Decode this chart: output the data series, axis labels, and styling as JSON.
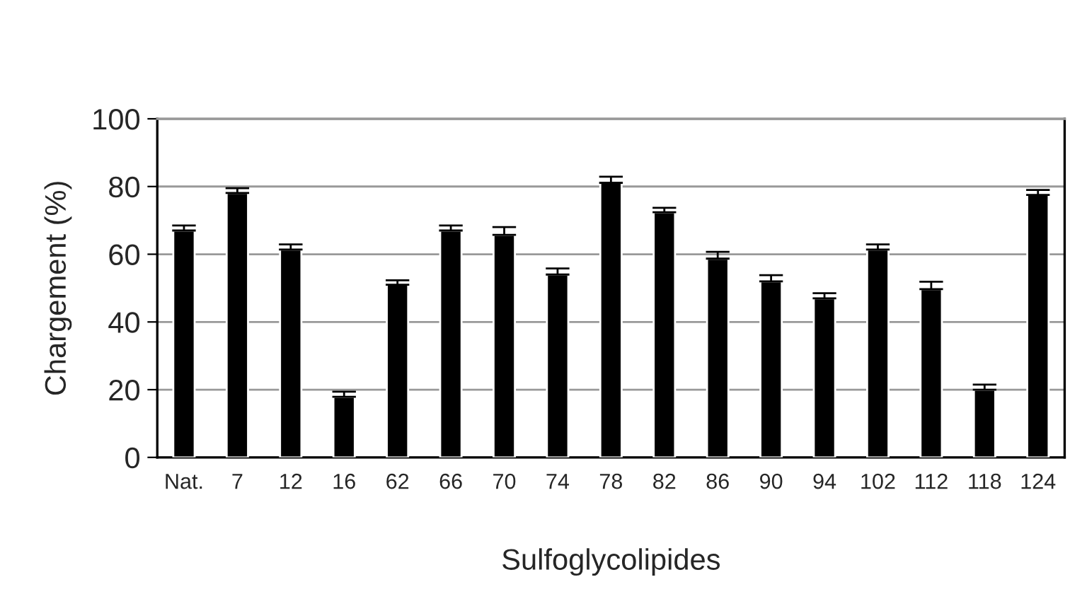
{
  "chart_data": {
    "type": "bar",
    "xlabel": "Sulfoglycolipides",
    "ylabel": "Chargement (%)",
    "categories": [
      "Nat.",
      "7",
      "12",
      "16",
      "62",
      "66",
      "70",
      "74",
      "78",
      "82",
      "86",
      "90",
      "94",
      "102",
      "112",
      "118",
      "124"
    ],
    "values": [
      67.0,
      78.1,
      61.4,
      17.9,
      51.0,
      67.0,
      65.7,
      54.0,
      81.1,
      72.4,
      58.7,
      52.0,
      47.0,
      61.4,
      49.7,
      20.0,
      77.5
    ],
    "errors": [
      [
        67.0,
        68.5
      ],
      [
        78.1,
        79.5
      ],
      [
        61.4,
        62.9
      ],
      [
        17.9,
        19.4
      ],
      [
        51.0,
        52.3
      ],
      [
        67.0,
        68.5
      ],
      [
        65.7,
        68.0
      ],
      [
        54.0,
        55.8
      ],
      [
        81.1,
        82.9
      ],
      [
        72.4,
        73.7
      ],
      [
        58.7,
        60.7
      ],
      [
        52.0,
        53.8
      ],
      [
        47.0,
        48.5
      ],
      [
        61.4,
        62.9
      ],
      [
        49.7,
        51.9
      ],
      [
        20.0,
        21.5
      ],
      [
        77.5,
        79.0
      ]
    ],
    "color": "#000000",
    "ylim": [
      0,
      100
    ],
    "yticks": [
      0,
      20,
      40,
      60,
      80,
      100
    ],
    "grid": "y",
    "legend": false
  }
}
